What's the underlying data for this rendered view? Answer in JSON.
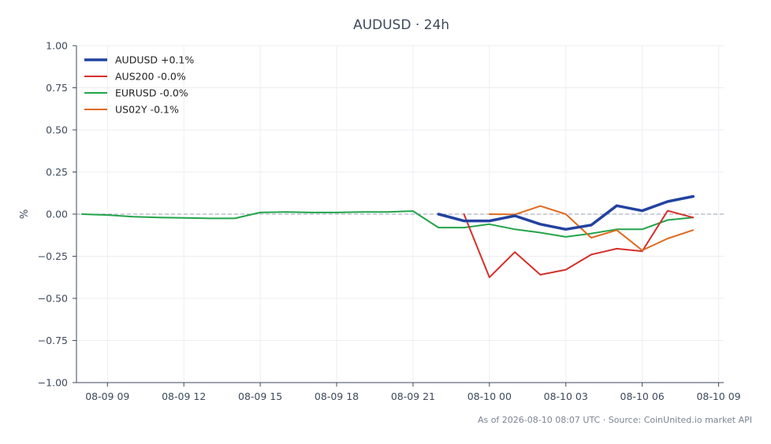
{
  "chart_data": {
    "type": "line",
    "title": "AUDUSD · 24h",
    "ylabel": "%",
    "xlabel": "",
    "ylim": [
      -1.0,
      1.0
    ],
    "y_ticks": [
      "1.00",
      "0.75",
      "0.50",
      "0.25",
      "0.00",
      "−0.25",
      "−0.50",
      "−0.75",
      "−1.00"
    ],
    "y_tick_values": [
      1.0,
      0.75,
      0.5,
      0.25,
      0.0,
      -0.25,
      -0.5,
      -0.75,
      -1.0
    ],
    "x_range": [
      "2026-08-09 07:47",
      "2026-08-10 09:12"
    ],
    "x_ticks": [
      {
        "label": "08-09 09",
        "t": "2026-08-09 09:00"
      },
      {
        "label": "08-09 12",
        "t": "2026-08-09 12:00"
      },
      {
        "label": "08-09 15",
        "t": "2026-08-09 15:00"
      },
      {
        "label": "08-09 18",
        "t": "2026-08-09 18:00"
      },
      {
        "label": "08-09 21",
        "t": "2026-08-09 21:00"
      },
      {
        "label": "08-10 00",
        "t": "2026-08-10 00:00"
      },
      {
        "label": "08-10 03",
        "t": "2026-08-10 03:00"
      },
      {
        "label": "08-10 06",
        "t": "2026-08-10 06:00"
      },
      {
        "label": "08-10 09",
        "t": "2026-08-10 09:00"
      }
    ],
    "grid": true,
    "legend_position": "top-left",
    "zero_line": true,
    "series": [
      {
        "name": "AUDUSD +0.1%",
        "color": "#2342a0",
        "width": 3.5,
        "x": [
          "2026-08-09 22:00",
          "2026-08-09 23:00",
          "2026-08-10 00:00",
          "2026-08-10 01:00",
          "2026-08-10 02:00",
          "2026-08-10 03:00",
          "2026-08-10 04:00",
          "2026-08-10 05:00",
          "2026-08-10 06:00",
          "2026-08-10 07:00",
          "2026-08-10 08:00"
        ],
        "y": [
          0.0,
          -0.04,
          -0.04,
          -0.01,
          -0.06,
          -0.09,
          -0.065,
          0.05,
          0.02,
          0.075,
          0.105
        ]
      },
      {
        "name": "AUS200 -0.0%",
        "color": "#d62f2a",
        "width": 2,
        "x": [
          "2026-08-09 23:00",
          "2026-08-10 00:00",
          "2026-08-10 01:00",
          "2026-08-10 02:00",
          "2026-08-10 03:00",
          "2026-08-10 04:00",
          "2026-08-10 05:00",
          "2026-08-10 06:00",
          "2026-08-10 07:00",
          "2026-08-10 08:00"
        ],
        "y": [
          0.0,
          -0.375,
          -0.225,
          -0.36,
          -0.33,
          -0.24,
          -0.205,
          -0.22,
          0.02,
          -0.02
        ]
      },
      {
        "name": "EURUSD -0.0%",
        "color": "#22a44a",
        "width": 2,
        "x": [
          "2026-08-09 08:00",
          "2026-08-09 09:00",
          "2026-08-09 10:00",
          "2026-08-09 11:00",
          "2026-08-09 12:00",
          "2026-08-09 13:00",
          "2026-08-09 14:00",
          "2026-08-09 15:00",
          "2026-08-09 16:00",
          "2026-08-09 17:00",
          "2026-08-09 18:00",
          "2026-08-09 19:00",
          "2026-08-09 20:00",
          "2026-08-09 21:00",
          "2026-08-09 22:00",
          "2026-08-09 23:00",
          "2026-08-10 00:00",
          "2026-08-10 01:00",
          "2026-08-10 02:00",
          "2026-08-10 03:00",
          "2026-08-10 04:00",
          "2026-08-10 05:00",
          "2026-08-10 06:00",
          "2026-08-10 07:00",
          "2026-08-10 08:00"
        ],
        "y": [
          0.0,
          -0.005,
          -0.015,
          -0.02,
          -0.022,
          -0.025,
          -0.025,
          0.01,
          0.013,
          0.01,
          0.01,
          0.013,
          0.013,
          0.018,
          -0.08,
          -0.08,
          -0.06,
          -0.09,
          -0.11,
          -0.135,
          -0.115,
          -0.09,
          -0.09,
          -0.035,
          -0.02
        ]
      },
      {
        "name": "US02Y -0.1%",
        "color": "#e06a1e",
        "width": 2,
        "x": [
          "2026-08-10 00:00",
          "2026-08-10 01:00",
          "2026-08-10 02:00",
          "2026-08-10 03:00",
          "2026-08-10 04:00",
          "2026-08-10 05:00",
          "2026-08-10 06:00",
          "2026-08-10 07:00",
          "2026-08-10 08:00"
        ],
        "y": [
          0.0,
          -0.002,
          0.048,
          0.0,
          -0.14,
          -0.095,
          -0.215,
          -0.145,
          -0.095
        ]
      }
    ]
  },
  "footer": {
    "source_text": "As of 2026-08-10 08:07 UTC · Source: CoinUnited.io market API"
  }
}
